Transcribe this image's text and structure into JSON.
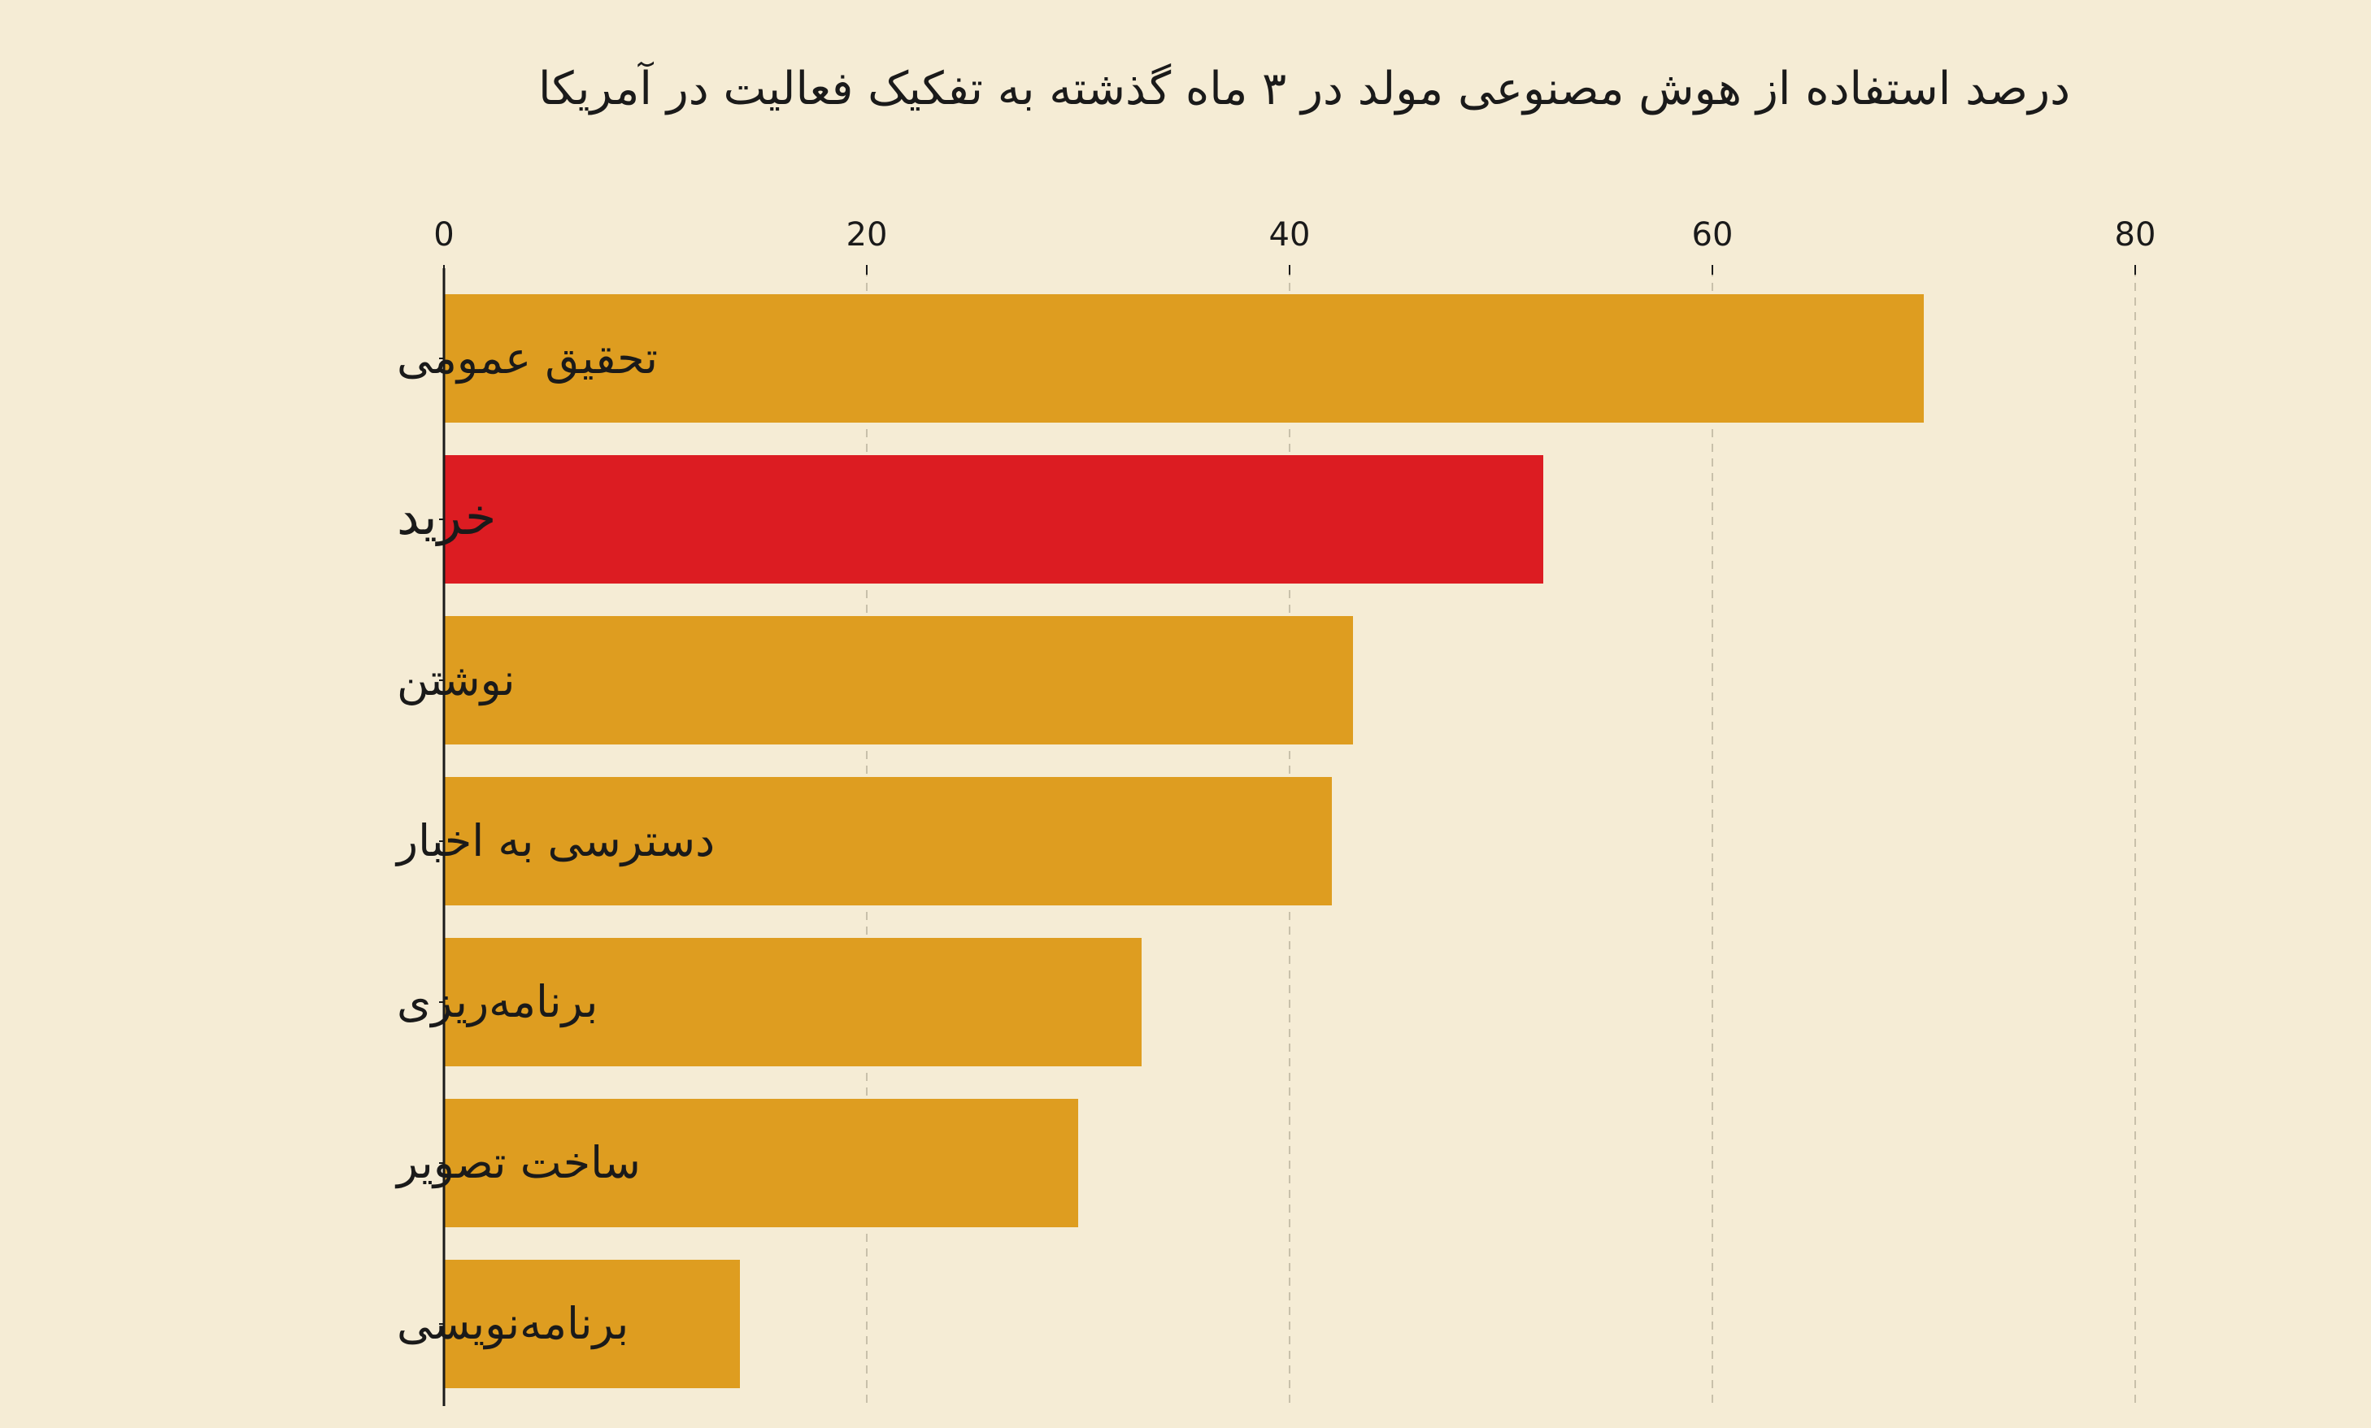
{
  "chart_data": {
    "type": "bar",
    "orientation": "horizontal",
    "title": "درصد استفاده از هوش مصنوعی مولد در ۳ ماه گذشته به تفکیک فعالیت در آمریکا",
    "xlabel": "",
    "ylabel": "",
    "xlim": [
      0,
      80
    ],
    "x_ticks": [
      "0",
      "20",
      "40",
      "60",
      "80"
    ],
    "grid": "vertical dashed",
    "categories": [
      "تحقیق عمومی",
      "خرید",
      "نوشتن",
      "دسترسی به اخبار",
      "برنامه‌ریزی",
      "ساخت تصویر",
      "برنامه‌نویسی"
    ],
    "values": [
      70,
      52,
      43,
      42,
      33,
      30,
      14
    ],
    "highlight_category": "خرید",
    "colors": {
      "bar": "#de9d20",
      "highlight": "#dc1c22",
      "background": "#f5ecd5",
      "grid": "#c8c0aa",
      "axis": "#1a1a1a"
    }
  }
}
